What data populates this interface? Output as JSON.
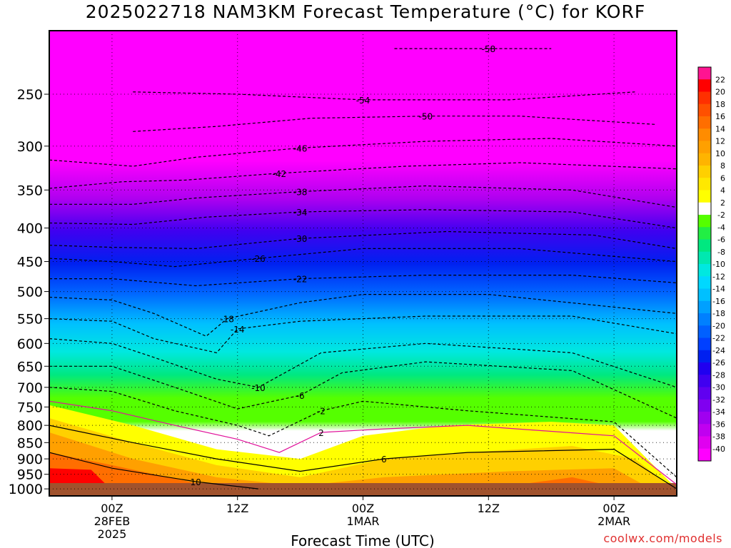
{
  "chart_data": {
    "type": "heatmap",
    "title": "2025022718 NAM3KM Forecast Temperature (°C) for KORF",
    "xlabel": "Forecast Time (UTC)",
    "ylabel": "",
    "y_scale": "log-pressure (hPa)",
    "y_ticks": [
      250,
      300,
      350,
      400,
      450,
      500,
      550,
      600,
      650,
      700,
      750,
      800,
      850,
      900,
      950,
      1000
    ],
    "x_ticks": [
      {
        "hour": 6,
        "label": "00Z",
        "sub1": "28FEB",
        "sub2": "2025"
      },
      {
        "hour": 18,
        "label": "12Z",
        "sub1": "",
        "sub2": ""
      },
      {
        "hour": 30,
        "label": "00Z",
        "sub1": "1MAR",
        "sub2": ""
      },
      {
        "hour": 42,
        "label": "12Z",
        "sub1": "",
        "sub2": ""
      },
      {
        "hour": 54,
        "label": "00Z",
        "sub1": "2MAR",
        "sub2": ""
      }
    ],
    "xlim_hours": [
      0,
      60
    ],
    "ylim_hpa": [
      200,
      1025
    ],
    "grid": true,
    "legend": "colorbar right",
    "colorbar_labels": [
      "22",
      "20",
      "18",
      "16",
      "14",
      "12",
      "10",
      "8",
      "6",
      "4",
      "2",
      "-2",
      "-4",
      "-6",
      "-8",
      "-10",
      "-12",
      "-14",
      "-16",
      "-18",
      "-20",
      "-22",
      "-24",
      "-26",
      "-28",
      "-30",
      "-32",
      "-34",
      "-36",
      "-38",
      "-40"
    ],
    "colorbar_colors": [
      "#ff1491",
      "#ff0000",
      "#ff3000",
      "#ff5000",
      "#ff6e00",
      "#ff8c00",
      "#ffa000",
      "#ffb400",
      "#ffd000",
      "#ffe800",
      "#ffff00",
      "#ffffff",
      "#55ff00",
      "#22ee44",
      "#00e880",
      "#00e8b0",
      "#00e8e0",
      "#00d8ff",
      "#00c0ff",
      "#00a0ff",
      "#0080ff",
      "#0060ff",
      "#0040ff",
      "#0020f0",
      "#2000f0",
      "#4000f0",
      "#6000f0",
      "#8000f0",
      "#a000f0",
      "#c000f0",
      "#e000f0",
      "#ff00ff"
    ],
    "series": [
      {
        "name": "-58",
        "hours": [
          33,
          42,
          48
        ],
        "hpa": [
          213,
          213,
          213
        ]
      },
      {
        "name": "-54",
        "hours": [
          8,
          18,
          30,
          44,
          56
        ],
        "hpa": [
          248,
          250,
          255,
          255,
          248
        ]
      },
      {
        "name": "-50",
        "hours": [
          8,
          16,
          25,
          36,
          45,
          58
        ],
        "hpa": [
          285,
          280,
          272,
          270,
          270,
          278
        ]
      },
      {
        "name": "-46",
        "hours": [
          0,
          8,
          14,
          24,
          36,
          48,
          60
        ],
        "hpa": [
          315,
          322,
          312,
          302,
          295,
          292,
          300
        ]
      },
      {
        "name": "-42",
        "hours": [
          0,
          7,
          13,
          22,
          34,
          45,
          60
        ],
        "hpa": [
          348,
          340,
          338,
          330,
          322,
          318,
          325
        ]
      },
      {
        "name": "-38",
        "hours": [
          0,
          8,
          14,
          24,
          36,
          50,
          60
        ],
        "hpa": [
          368,
          368,
          360,
          352,
          345,
          350,
          372
        ]
      },
      {
        "name": "-34",
        "hours": [
          0,
          8,
          15,
          24,
          36,
          50,
          60
        ],
        "hpa": [
          393,
          395,
          385,
          378,
          375,
          378,
          400
        ]
      },
      {
        "name": "-30",
        "hours": [
          0,
          6,
          14,
          24,
          38,
          52,
          60
        ],
        "hpa": [
          425,
          428,
          430,
          415,
          405,
          410,
          430
        ]
      },
      {
        "name": "-26",
        "hours": [
          0,
          6,
          12,
          20,
          30,
          45,
          60
        ],
        "hpa": [
          445,
          450,
          458,
          445,
          430,
          430,
          450
        ]
      },
      {
        "name": "-22",
        "hours": [
          0,
          6,
          14,
          24,
          36,
          50,
          60
        ],
        "hpa": [
          478,
          478,
          490,
          478,
          472,
          472,
          485
        ]
      },
      {
        "name": "-18",
        "hours": [
          0,
          6,
          10,
          15,
          17,
          24,
          30,
          42,
          60
        ],
        "hpa": [
          510,
          515,
          540,
          585,
          550,
          520,
          505,
          505,
          540
        ]
      },
      {
        "name": "-14",
        "hours": [
          0,
          6,
          10,
          16,
          18,
          24,
          36,
          50,
          60
        ],
        "hpa": [
          550,
          555,
          590,
          620,
          570,
          555,
          545,
          545,
          580
        ]
      },
      {
        "name": "-10",
        "hours": [
          0,
          6,
          10,
          16,
          20,
          26,
          36,
          50,
          60
        ],
        "hpa": [
          590,
          600,
          630,
          680,
          700,
          620,
          600,
          620,
          700
        ]
      },
      {
        "name": "-6",
        "hours": [
          0,
          6,
          12,
          18,
          24,
          28,
          36,
          50,
          60
        ],
        "hpa": [
          650,
          650,
          700,
          755,
          720,
          665,
          640,
          660,
          780
        ]
      },
      {
        "name": "-2",
        "hours": [
          0,
          6,
          12,
          18,
          21,
          26,
          30,
          40,
          54,
          60
        ],
        "hpa": [
          700,
          710,
          760,
          800,
          830,
          760,
          735,
          760,
          790,
          960
        ]
      },
      {
        "name": "2",
        "hours": [
          0,
          6,
          12,
          18,
          22,
          26,
          32,
          40,
          54,
          60
        ],
        "hpa": [
          735,
          760,
          800,
          840,
          880,
          820,
          810,
          800,
          830,
          985
        ]
      },
      {
        "name": "6",
        "hours": [
          0,
          8,
          16,
          24,
          32,
          40,
          54,
          60
        ],
        "hpa": [
          800,
          850,
          900,
          940,
          900,
          880,
          870,
          1000
        ]
      },
      {
        "name": "10",
        "hours": [
          0,
          6,
          14,
          20
        ],
        "hpa": [
          880,
          930,
          975,
          1000
        ]
      }
    ]
  },
  "watermark": "coolwx.com/models"
}
